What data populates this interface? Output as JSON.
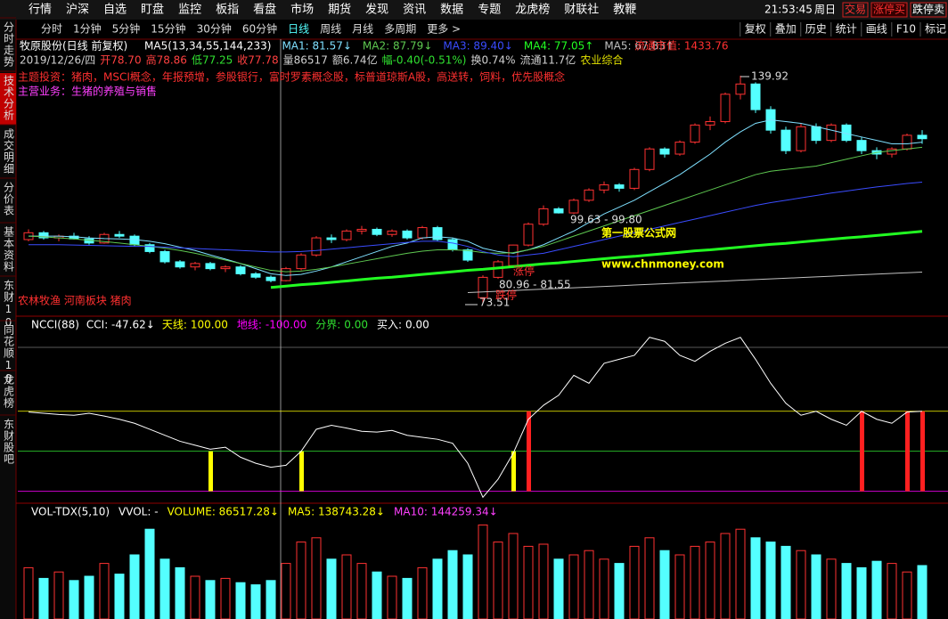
{
  "menu": [
    "行情",
    "沪深",
    "自选",
    "盯盘",
    "监控",
    "板指",
    "看盘",
    "市场",
    "期货",
    "发现",
    "资讯",
    "数据",
    "专题",
    "龙虎榜",
    "财联社",
    "教鞭"
  ],
  "clock": "21:53:45",
  "weekday": "周日",
  "trade_buttons": [
    "交易",
    "涨停买",
    "跌停卖"
  ],
  "side_tabs": [
    {
      "label": "分时走势"
    },
    {
      "label": "技术分析",
      "selected": true
    },
    {
      "label": "成交明细"
    },
    {
      "label": "分价表"
    },
    {
      "label": "基本资料"
    },
    {
      "label": "东财10"
    },
    {
      "label": "同花顺10"
    },
    {
      "label": "龙虎榜"
    },
    {
      "label": "东财股吧"
    }
  ],
  "periods": [
    {
      "label": "分时"
    },
    {
      "label": "1分钟"
    },
    {
      "label": "5分钟"
    },
    {
      "label": "15分钟"
    },
    {
      "label": "30分钟"
    },
    {
      "label": "60分钟"
    },
    {
      "label": "日线",
      "selected": true
    },
    {
      "label": "周线"
    },
    {
      "label": "月线"
    },
    {
      "label": "多周期"
    },
    {
      "label": "更多 >"
    }
  ],
  "tools": [
    "复权",
    "叠加",
    "历史",
    "统计",
    "画线",
    "F10",
    "标记"
  ],
  "stock_title": "牧原股份(日线 前复权)",
  "market_cap": "流通市值: 1433.76",
  "quote_line": [
    {
      "text": "2019/12/26/四",
      "color": "#d0d0d0"
    },
    {
      "text": "开78.70",
      "color": "#ff4040"
    },
    {
      "text": "高78.86",
      "color": "#ff4040"
    },
    {
      "text": "低77.25",
      "color": "#30e030"
    },
    {
      "text": "收77.78",
      "color": "#ff4040"
    },
    {
      "text": "量86517",
      "color": "#d0d0d0"
    },
    {
      "text": "额6.74亿",
      "color": "#d0d0d0"
    },
    {
      "text": "幅-0.40(-0.51%)",
      "color": "#30e030"
    },
    {
      "text": "换0.74%",
      "color": "#d0d0d0"
    },
    {
      "text": "流通11.7亿",
      "color": "#d0d0d0"
    },
    {
      "text": "农业综合",
      "color": "#e0e000"
    }
  ],
  "theme_line": "主题投资：猪肉，MSCI概念，年报预增，参股银行，富时罗素概念股，标普道琼斯A股，高送转，饲料，优先股概念",
  "business_line": "主营业务：生猪的养殖与销售",
  "chart_data": [
    {
      "type": "candlestick",
      "indicator": "MA5(13,34,55,144,233)",
      "ylim": [
        69.6,
        150.6
      ],
      "up_color": "#ff3232",
      "down_color": "#54ffff",
      "annotations": [
        "139.92",
        "99.63 - 99.80",
        "80.96 - 81.55",
        "73.51",
        "涨停",
        "跌停",
        "农林牧渔 河南板块 猪肉"
      ],
      "watermark": [
        "第一股票公式网",
        "www.chnmoney.com"
      ],
      "ohlc": [
        [
          92,
          95,
          91.5,
          94
        ],
        [
          94,
          94.5,
          92,
          92.5
        ],
        [
          92.5,
          93.5,
          91.5,
          93
        ],
        [
          93,
          94,
          92,
          92.2
        ],
        [
          92.2,
          93,
          90.5,
          91
        ],
        [
          91,
          94,
          90.8,
          93.5
        ],
        [
          93.5,
          94.5,
          92.5,
          93
        ],
        [
          93,
          93.5,
          90,
          90.5
        ],
        [
          90.5,
          91,
          88,
          88.5
        ],
        [
          88.5,
          89,
          85,
          85.5
        ],
        [
          85.5,
          86,
          83.5,
          84
        ],
        [
          84,
          85.5,
          83,
          85
        ],
        [
          85,
          85.5,
          83,
          83.5
        ],
        [
          83.5,
          84.5,
          82.5,
          84
        ],
        [
          84,
          84.5,
          81.5,
          82
        ],
        [
          82,
          82.5,
          80.5,
          81
        ],
        [
          81,
          81.5,
          79.5,
          80
        ],
        [
          80,
          84,
          79.8,
          83.5
        ],
        [
          83.5,
          88,
          83,
          87.5
        ],
        [
          87.5,
          93,
          87,
          92.5
        ],
        [
          92.5,
          93.5,
          91,
          92
        ],
        [
          92,
          95,
          91.5,
          94.5
        ],
        [
          94.5,
          96,
          93.5,
          95
        ],
        [
          95,
          95.5,
          93,
          93.5
        ],
        [
          93.5,
          95,
          92.8,
          94.5
        ],
        [
          94.5,
          95,
          92,
          92.5
        ],
        [
          92.5,
          96,
          92,
          95.5
        ],
        [
          95.5,
          96,
          91.5,
          92
        ],
        [
          92,
          92.5,
          88.5,
          89
        ],
        [
          89,
          89.5,
          85.5,
          86
        ],
        [
          75,
          81.55,
          73.51,
          80.96
        ],
        [
          80.96,
          86,
          80.5,
          85.5
        ],
        [
          84.4,
          90.5,
          84,
          90.4
        ],
        [
          90.4,
          97,
          90,
          96.5
        ],
        [
          96.5,
          102,
          96,
          101
        ],
        [
          101,
          101.5,
          99.63,
          99.8
        ],
        [
          99.8,
          104,
          99.5,
          103.5
        ],
        [
          103.5,
          107,
          103,
          106.5
        ],
        [
          106.5,
          109,
          105.5,
          108
        ],
        [
          108,
          108.5,
          106,
          107
        ],
        [
          107,
          113,
          106.5,
          112.5
        ],
        [
          112.5,
          119,
          112,
          118.5
        ],
        [
          118.5,
          119,
          116,
          117
        ],
        [
          117,
          121,
          116.5,
          120.5
        ],
        [
          120.5,
          126,
          120,
          125.5
        ],
        [
          125.5,
          128,
          124,
          126.5
        ],
        [
          126.5,
          135,
          126,
          134.5
        ],
        [
          134.5,
          139.92,
          133,
          137.5
        ],
        [
          137.5,
          138,
          129,
          130
        ],
        [
          130,
          131,
          123,
          124
        ],
        [
          124,
          125,
          117,
          118
        ],
        [
          118,
          126,
          117.5,
          125
        ],
        [
          125,
          126,
          120,
          121
        ],
        [
          121,
          126,
          120.5,
          125.5
        ],
        [
          125.5,
          126,
          120.5,
          121
        ],
        [
          121,
          122,
          117,
          118
        ],
        [
          118,
          119,
          115.5,
          117
        ],
        [
          117,
          119,
          116,
          118.5
        ],
        [
          118.5,
          123,
          118,
          122.5
        ],
        [
          122.5,
          124,
          120,
          121.5
        ]
      ],
      "series": [
        {
          "name": "MA1: 81.57↓",
          "color": "#7fe0ff",
          "width": 1,
          "values": [
            93,
            93,
            93,
            92.8,
            92.5,
            92.3,
            92.2,
            92,
            91.5,
            90.8,
            89.8,
            88.8,
            87.5,
            86.3,
            85,
            83.5,
            82,
            81.5,
            81.8,
            82.8,
            84,
            85.5,
            87,
            88.5,
            90,
            91,
            92.5,
            92.8,
            92.5,
            91.5,
            89.5,
            88.5,
            88,
            89,
            90.5,
            92.5,
            94.5,
            97,
            99.5,
            101.5,
            103.5,
            106,
            108.5,
            111,
            114,
            117,
            120.5,
            123.5,
            126,
            127,
            126.5,
            126,
            125,
            124,
            123,
            122,
            121,
            120,
            120,
            120.5
          ]
        },
        {
          "name": "MA2: 87.79↓",
          "color": "#5ec850",
          "width": 1,
          "values": [
            93,
            92.8,
            92.5,
            92.2,
            91.8,
            91.4,
            91,
            90.5,
            90,
            89.5,
            88.8,
            88,
            87,
            86,
            85,
            84,
            83,
            82.6,
            82.8,
            83.3,
            84,
            84.8,
            85.6,
            86.4,
            87.2,
            88,
            88.6,
            89,
            89,
            88.8,
            88.2,
            88,
            88.2,
            89,
            90,
            91.5,
            93,
            94.5,
            96,
            97.5,
            99,
            100.5,
            102,
            103.5,
            105,
            106.5,
            108,
            109.5,
            111,
            112,
            112.5,
            113,
            113.5,
            114.5,
            115.5,
            116.5,
            117.5,
            118,
            118.5,
            119
          ]
        },
        {
          "name": "MA3: 89.40↓",
          "color": "#3a4cff",
          "width": 1,
          "values": [
            90.5,
            90.5,
            90.5,
            90.4,
            90.3,
            90.2,
            90.1,
            90,
            90,
            89.8,
            89.6,
            89.4,
            89.2,
            89,
            88.8,
            88.6,
            88.4,
            88.4,
            88.5,
            88.8,
            89.2,
            89.6,
            90,
            90.4,
            90.8,
            91.2,
            91.5,
            91.5,
            91,
            90,
            88.5,
            87.5,
            87,
            87.5,
            88,
            89,
            90,
            91,
            92,
            93,
            94,
            95,
            96,
            97,
            98,
            99,
            100,
            101,
            102,
            102.8,
            103.5,
            104.2,
            104.9,
            105.6,
            106.2,
            106.8,
            107.4,
            107.9,
            108.4,
            108.8
          ]
        },
        {
          "name": "MA4: 77.05↑",
          "color": "#22ff22",
          "width": 3,
          "values": [
            null,
            null,
            null,
            null,
            null,
            null,
            null,
            null,
            null,
            null,
            null,
            null,
            null,
            null,
            null,
            null,
            78,
            78.4,
            78.8,
            79.1,
            79.5,
            79.9,
            80.3,
            80.7,
            81,
            81.4,
            81.8,
            82.2,
            82.6,
            83,
            83.3,
            83.7,
            84.1,
            84.5,
            84.9,
            85.2,
            85.6,
            86,
            86.4,
            86.8,
            87.1,
            87.5,
            87.9,
            88.3,
            88.7,
            89,
            89.4,
            89.8,
            90.2,
            90.6,
            90.9,
            91.3,
            91.7,
            92.1,
            92.5,
            92.8,
            93.2,
            93.6,
            94,
            94.4
          ]
        },
        {
          "name": "MA5: 67.83↑",
          "color": "#c0c0c0",
          "width": 1,
          "values": [
            null,
            null,
            null,
            null,
            null,
            null,
            null,
            null,
            null,
            null,
            null,
            null,
            null,
            null,
            null,
            null,
            null,
            null,
            null,
            null,
            null,
            null,
            null,
            null,
            null,
            null,
            null,
            null,
            null,
            76.5,
            76.7,
            76.9,
            77.1,
            77.3,
            77.5,
            77.7,
            77.9,
            78.1,
            78.3,
            78.5,
            78.7,
            78.9,
            79.1,
            79.3,
            79.5,
            79.7,
            79.9,
            80.1,
            80.3,
            80.5,
            80.7,
            80.9,
            81.1,
            81.3,
            81.5,
            81.7,
            81.9,
            82.1,
            82.3,
            82.5
          ]
        }
      ]
    },
    {
      "type": "line",
      "indicator": "NCCI(88)",
      "ylim": [
        -130,
        300
      ],
      "series": [
        {
          "name": "CCI: -47.62↓",
          "color": "#ffffff",
          "values": [
            98,
            95,
            92,
            90,
            95,
            88,
            80,
            70,
            55,
            40,
            25,
            15,
            5,
            10,
            -15,
            -30,
            -40,
            -35,
            0,
            55,
            65,
            58,
            50,
            48,
            52,
            40,
            35,
            30,
            20,
            -30,
            -115,
            -70,
            -5,
            80,
            115,
            140,
            190,
            170,
            220,
            230,
            240,
            285,
            275,
            240,
            225,
            250,
            270,
            285,
            230,
            170,
            120,
            90,
            100,
            80,
            65,
            100,
            80,
            70,
            98,
            100
          ]
        }
      ],
      "levels": [
        {
          "name": "天线:",
          "value": 100,
          "label": "100.00",
          "color": "#ffff00"
        },
        {
          "name": "地线:",
          "value": -100,
          "label": "-100.00",
          "color": "#ff00ff"
        },
        {
          "name": "分界:",
          "value": 0,
          "label": "0.00",
          "color": "#30e030"
        }
      ],
      "buy": {
        "name": "买入:",
        "label": "0.00"
      },
      "buy_marks": [
        {
          "color": "#ffff00",
          "days": [
            12,
            18,
            32
          ]
        },
        {
          "color": "#ff2020",
          "days": [
            33,
            55,
            58,
            59
          ]
        }
      ]
    },
    {
      "type": "bar",
      "indicator": "VOL-TDX(5,10)",
      "ylim": [
        0,
        250000
      ],
      "header": [
        {
          "text": "VVOL: -",
          "color": "#ffffff"
        },
        {
          "text": "VOLUME: 86517.28↓",
          "color": "#ffff00"
        },
        {
          "text": "MA5: 138743.28↓",
          "color": "#ffff00"
        },
        {
          "text": "MA10: 144259.34↓",
          "color": "#ff40ff"
        }
      ],
      "values": [
        120000,
        95000,
        110000,
        90000,
        100000,
        130000,
        105000,
        150000,
        210000,
        140000,
        120000,
        100000,
        90000,
        95000,
        85000,
        80000,
        90000,
        130000,
        180000,
        190000,
        140000,
        150000,
        130000,
        110000,
        100000,
        95000,
        120000,
        140000,
        160000,
        150000,
        220000,
        180000,
        200000,
        170000,
        175000,
        140000,
        150000,
        160000,
        140000,
        130000,
        170000,
        190000,
        160000,
        150000,
        170000,
        180000,
        200000,
        210000,
        190000,
        180000,
        170000,
        160000,
        150000,
        140000,
        130000,
        120000,
        135000,
        130000,
        110000,
        125000
      ]
    }
  ]
}
